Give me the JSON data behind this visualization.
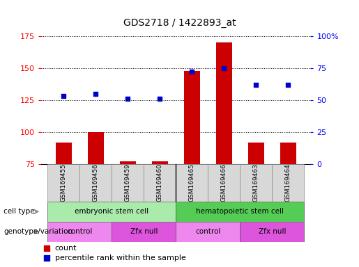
{
  "title": "GDS2718 / 1422893_at",
  "samples": [
    "GSM169455",
    "GSM169456",
    "GSM169459",
    "GSM169460",
    "GSM169465",
    "GSM169466",
    "GSM169463",
    "GSM169464"
  ],
  "counts": [
    92,
    100,
    77,
    77,
    148,
    170,
    92,
    92
  ],
  "percentiles": [
    53,
    55,
    51,
    51,
    72,
    75,
    62,
    62
  ],
  "ylim_left": [
    75,
    175
  ],
  "ylim_right": [
    0,
    100
  ],
  "yticks_left": [
    75,
    100,
    125,
    150,
    175
  ],
  "yticks_right": [
    0,
    25,
    50,
    75,
    100
  ],
  "ytick_labels_right": [
    "0",
    "25",
    "50",
    "75",
    "100%"
  ],
  "bar_color": "#cc0000",
  "scatter_color": "#0000cc",
  "cell_type_groups": [
    {
      "label": "embryonic stem cell",
      "start": 0,
      "end": 3,
      "color": "#aaeaaa"
    },
    {
      "label": "hematopoietic stem cell",
      "start": 4,
      "end": 7,
      "color": "#55cc55"
    }
  ],
  "genotype_groups": [
    {
      "label": "control",
      "start": 0,
      "end": 1,
      "color": "#ee88ee"
    },
    {
      "label": "Zfx null",
      "start": 2,
      "end": 3,
      "color": "#dd55dd"
    },
    {
      "label": "control",
      "start": 4,
      "end": 5,
      "color": "#ee88ee"
    },
    {
      "label": "Zfx null",
      "start": 6,
      "end": 7,
      "color": "#dd55dd"
    }
  ],
  "tick_fontsize": 8,
  "title_fontsize": 10,
  "bar_width": 0.5,
  "legend_items": [
    "count",
    "percentile rank within the sample"
  ]
}
